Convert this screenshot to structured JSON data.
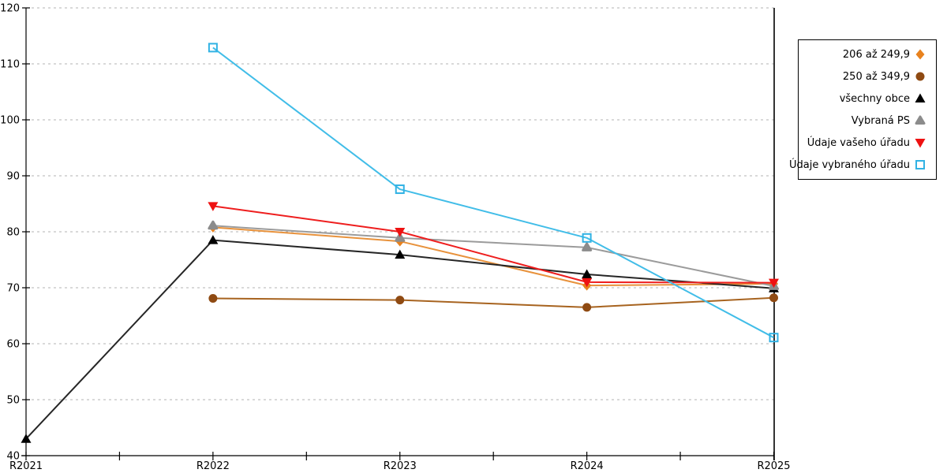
{
  "chart_data": {
    "type": "line",
    "title": "",
    "xlabel": "",
    "ylabel": "",
    "categories": [
      "R2021",
      "R2022",
      "R2023",
      "R2024",
      "R2025"
    ],
    "ylim": [
      40,
      120
    ],
    "yticks": [
      40,
      50,
      60,
      70,
      80,
      90,
      100,
      110,
      120
    ],
    "grid": "horizontal-dashed",
    "legend_position": "right",
    "series": [
      {
        "name": "206 až 249,9",
        "marker": "diamond",
        "color": "#E8821E",
        "line_color": "#E8923C",
        "values": [
          null,
          80.8,
          78.3,
          70.4,
          70.7
        ]
      },
      {
        "name": "250 až 349,9",
        "marker": "circle",
        "color": "#8F4A12",
        "line_color": "#A7631F",
        "values": [
          null,
          68.1,
          67.8,
          66.5,
          68.2
        ]
      },
      {
        "name": "všechny obce",
        "marker": "triangle-up",
        "color": "#000000",
        "line_color": "#262626",
        "values": [
          43,
          78.5,
          75.9,
          72.4,
          69.9
        ]
      },
      {
        "name": "Vybraná PS",
        "marker": "triangle-up-rounded",
        "color": "#8C8C8C",
        "line_color": "#9B9B9B",
        "values": [
          null,
          81.1,
          78.9,
          77.2,
          70.3
        ]
      },
      {
        "name": "Údaje vašeho úřadu",
        "marker": "triangle-down",
        "color": "#EE1111",
        "line_color": "#EE1E1E",
        "values": [
          null,
          84.6,
          80,
          71,
          70.9
        ]
      },
      {
        "name": "Údaje vybraného úřadu",
        "marker": "square-open",
        "color": "#31B2E4",
        "line_color": "#41BDE8",
        "values": [
          null,
          112.9,
          87.6,
          78.9,
          61.1
        ]
      }
    ]
  }
}
